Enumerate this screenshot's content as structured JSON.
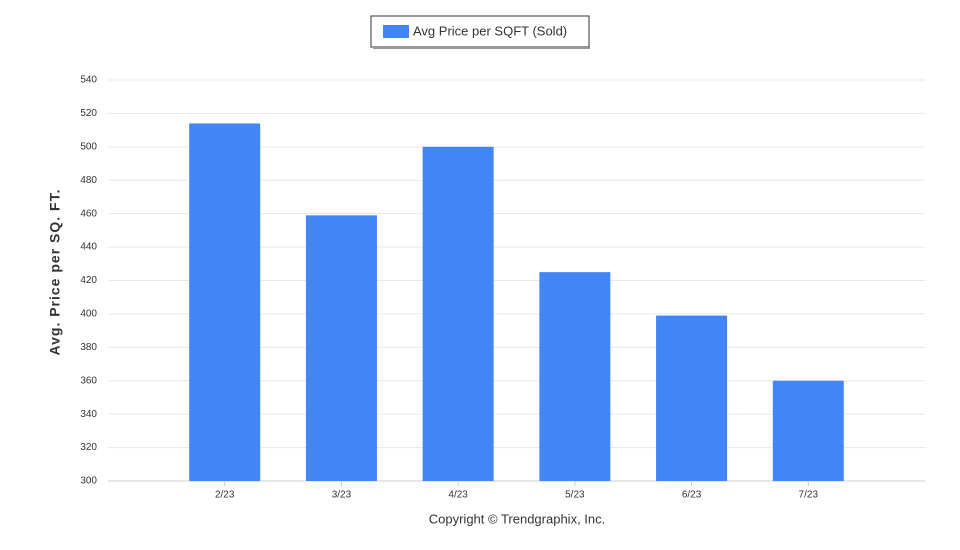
{
  "chart_data": {
    "type": "bar",
    "legend_title": "Avg Price per SQFT (Sold)",
    "y_label": "Avg. Price per SQ. FT.",
    "caption": "Copyright © Trendgraphix, Inc.",
    "categories": [
      "2/23",
      "3/23",
      "4/23",
      "5/23",
      "6/23",
      "7/23"
    ],
    "series": [
      {
        "name": "Avg Price per SQFT (Sold)",
        "color": "#4285f4",
        "values": [
          514,
          459,
          500,
          425,
          399,
          360
        ]
      }
    ],
    "ylim": [
      300,
      540
    ],
    "yticks": [
      300,
      320,
      340,
      360,
      380,
      400,
      420,
      440,
      460,
      480,
      500,
      520,
      540
    ],
    "grid": true,
    "legend": "top"
  }
}
